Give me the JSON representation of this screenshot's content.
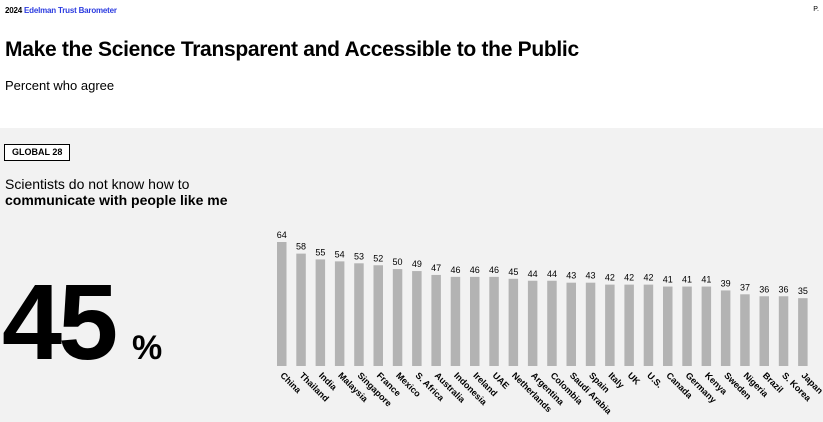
{
  "header": {
    "year": "2024",
    "brand": "Edelman Trust Barometer",
    "page_marker": "P."
  },
  "title": "Make the Science Transparent and Accessible to the Public",
  "subtitle": "Percent who agree",
  "badge": "GLOBAL 28",
  "statement": {
    "line1": "Scientists do not know how to",
    "line2": "communicate with people like me"
  },
  "global_value": "45",
  "global_unit": "%",
  "colors": {
    "bar": "#b3b3b3",
    "panel": "#f2f2f2",
    "brand_blue": "#2b3be0"
  },
  "chart_data": {
    "type": "bar",
    "categories": [
      "China",
      "Thailand",
      "India",
      "Malaysia",
      "Singapore",
      "France",
      "Mexico",
      "S. Africa",
      "Australia",
      "Indonesia",
      "Ireland",
      "UAE",
      "Netherlands",
      "Argentina",
      "Colombia",
      "Saudi Arabia",
      "Spain",
      "Italy",
      "UK",
      "U.S.",
      "Canada",
      "Germany",
      "Kenya",
      "Sweden",
      "Nigeria",
      "Brazil",
      "S. Korea",
      "Japan"
    ],
    "values": [
      64,
      58,
      55,
      54,
      53,
      52,
      50,
      49,
      47,
      46,
      46,
      46,
      45,
      44,
      44,
      43,
      43,
      42,
      42,
      42,
      41,
      41,
      41,
      39,
      37,
      36,
      36,
      35
    ],
    "value_labels": "shown above bars",
    "ylim": [
      0,
      64
    ],
    "grid": false,
    "title": "",
    "xlabel": "",
    "ylabel": ""
  }
}
